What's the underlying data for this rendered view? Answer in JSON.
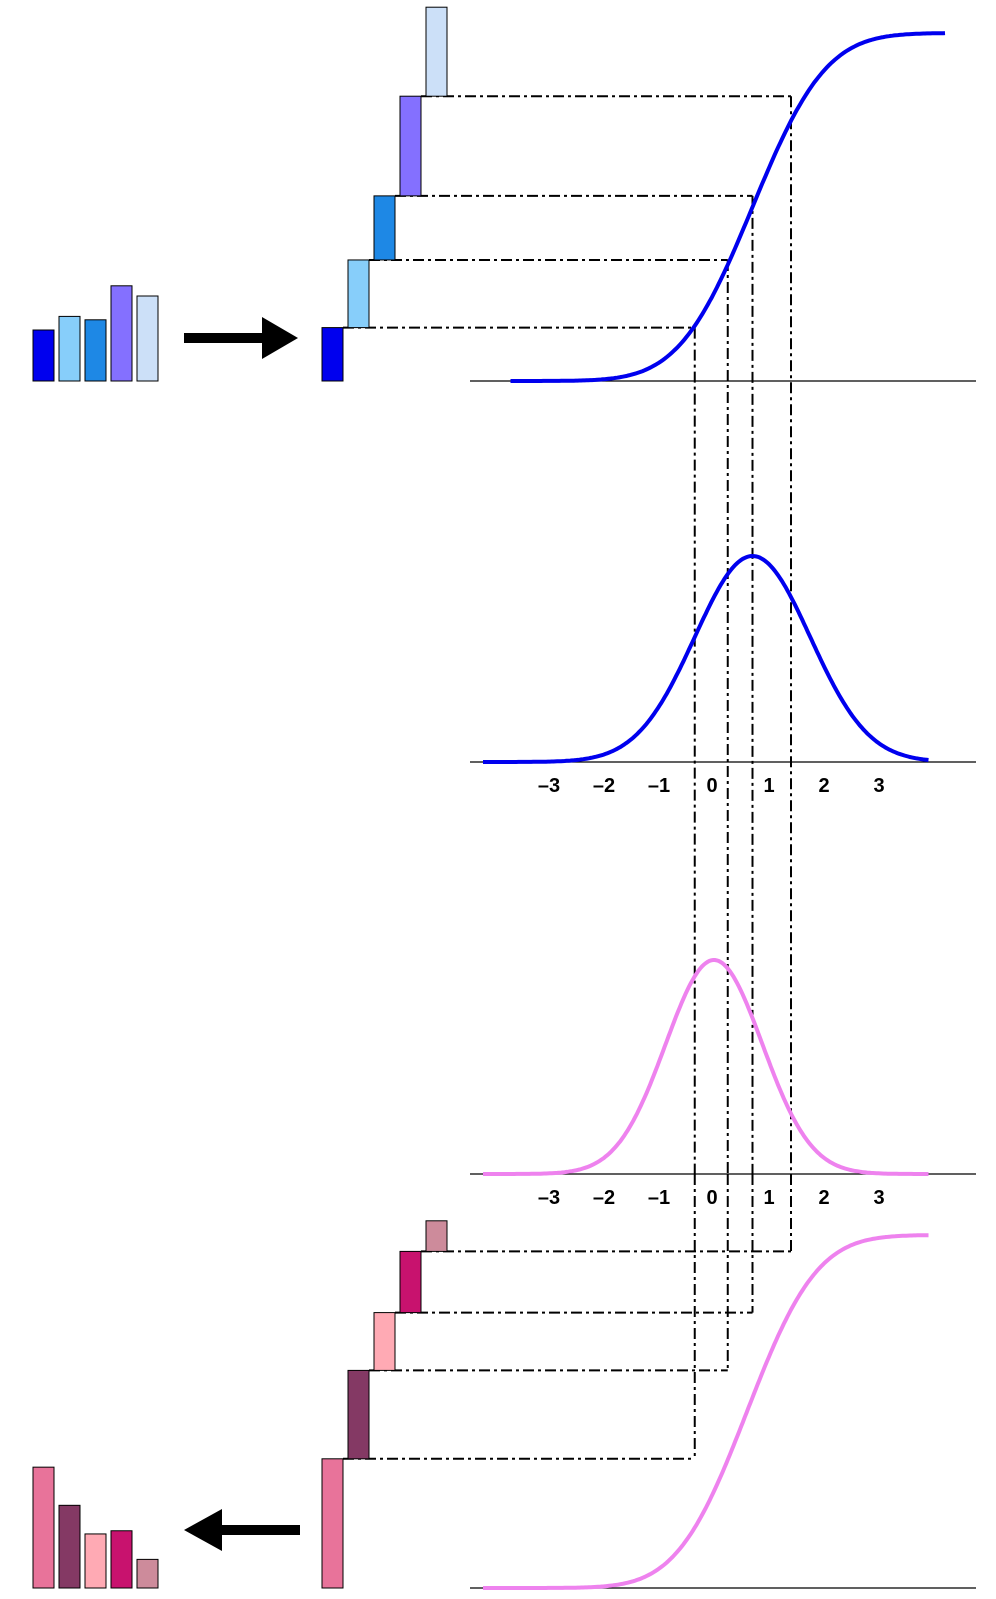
{
  "axis_ticks": [
    "–3",
    "–2",
    "–1",
    "0",
    "1",
    "2",
    "3"
  ],
  "source_distribution": {
    "curve_color": "#0000ee",
    "mean": 0.7,
    "sd": 1.05,
    "bar_colors": [
      "#0000ee",
      "#87cefa",
      "#1e88e5",
      "#8470ff",
      "#cce0f8"
    ],
    "bar_values": [
      0.15,
      0.19,
      0.18,
      0.28,
      0.25
    ],
    "quantile_positions": [
      -0.35,
      0.25,
      0.7,
      1.4
    ]
  },
  "target_distribution": {
    "curve_color": "#ee82ee",
    "mean": 0.0,
    "sd": 0.88,
    "bar_colors": [
      "#e8739a",
      "#843964",
      "#ffaab4",
      "#c8126e",
      "#cd8b9b"
    ],
    "bar_values": [
      0.38,
      0.26,
      0.17,
      0.18,
      0.09
    ],
    "quantile_positions": [
      -0.35,
      0.25,
      0.7,
      1.4
    ]
  }
}
